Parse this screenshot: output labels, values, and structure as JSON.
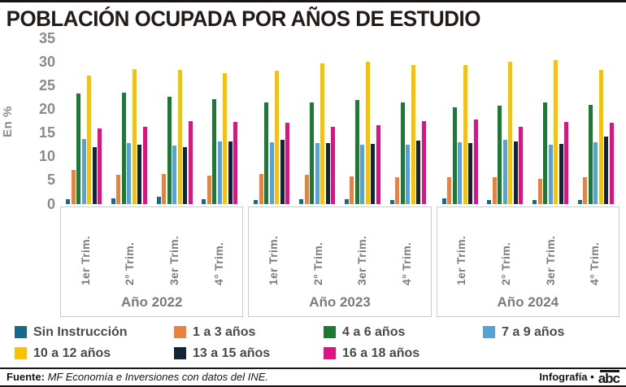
{
  "header": {
    "title": "POBLACIÓN OCUPADA POR AÑOS DE ESTUDIO"
  },
  "chart_data": {
    "type": "bar",
    "title": "POBLACIÓN OCUPADA POR AÑOS DE ESTUDIO",
    "ylabel": "En %",
    "ymax": 35,
    "yticks": [
      0,
      5,
      10,
      15,
      20,
      25,
      30,
      35
    ],
    "grid": false,
    "legend_position": "bottom",
    "years": [
      {
        "label": "Año 2022",
        "quarters": [
          "1er Trim.",
          "2° Trim.",
          "3er Trim.",
          "4° Trim."
        ]
      },
      {
        "label": "Año 2023",
        "quarters": [
          "1er Trim.",
          "2° Trim.",
          "3er Trim.",
          "4° Trim."
        ]
      },
      {
        "label": "Año 2024",
        "quarters": [
          "1er Trim.",
          "2° Trim.",
          "3er Trim.",
          "4° Trim."
        ]
      }
    ],
    "series": [
      {
        "name": "Sin Instrucción",
        "color": "#19698c",
        "values": [
          1.0,
          1.1,
          1.4,
          0.9,
          0.8,
          0.9,
          1.0,
          0.8,
          1.1,
          0.8,
          0.7,
          0.8
        ]
      },
      {
        "name": "1 a 3 años",
        "color": "#e8823c",
        "values": [
          7.2,
          6.1,
          6.2,
          6.0,
          6.2,
          6.1,
          5.8,
          5.6,
          5.6,
          5.5,
          5.3,
          5.5
        ]
      },
      {
        "name": "4 a 6 años",
        "color": "#1b7b34",
        "values": [
          23.3,
          23.5,
          22.6,
          22.1,
          21.3,
          21.4,
          21.9,
          21.4,
          20.3,
          20.6,
          21.3,
          20.9
        ]
      },
      {
        "name": "7 a 9 años",
        "color": "#55a2d8",
        "values": [
          13.7,
          12.7,
          12.3,
          13.2,
          12.9,
          12.8,
          12.4,
          12.5,
          12.9,
          13.5,
          12.5,
          12.9
        ]
      },
      {
        "name": "10 a 12 años",
        "color": "#f7c300",
        "values": [
          27.0,
          28.4,
          28.3,
          27.6,
          28.0,
          29.6,
          30.0,
          29.3,
          29.2,
          29.9,
          30.2,
          28.3
        ]
      },
      {
        "name": "13 a 15 años",
        "color": "#152438",
        "values": [
          12.0,
          12.4,
          11.9,
          13.1,
          13.5,
          12.7,
          12.6,
          13.3,
          12.8,
          13.2,
          12.6,
          14.2
        ]
      },
      {
        "name": "16 a 18 años",
        "color": "#e01283",
        "values": [
          15.8,
          16.2,
          17.4,
          17.2,
          17.0,
          16.2,
          16.5,
          17.5,
          17.7,
          16.3,
          17.3,
          17.1
        ]
      }
    ]
  },
  "footer": {
    "source_label": "Fuente:",
    "source_text": "MF Economía e Inversiones con datos del INE.",
    "credit": "Infografía •",
    "logo": "abc"
  }
}
